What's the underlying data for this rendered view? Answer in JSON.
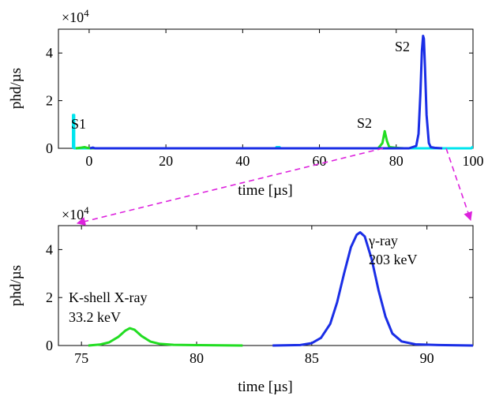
{
  "chart_data": [
    {
      "type": "line",
      "xlabel": "time [µs]",
      "ylabel": "phd/µs",
      "y_multiplier": "×10",
      "y_multiplier_exp": "4",
      "xlim": [
        -8,
        100
      ],
      "ylim": [
        0,
        5
      ],
      "xticks": [
        0,
        20,
        40,
        60,
        80,
        100
      ],
      "yticks": [
        0,
        2,
        4
      ],
      "grid": false,
      "series": [
        {
          "color": "#00e5ee",
          "points": [
            [
              -4.2,
              0
            ],
            [
              -4.2,
              1.4
            ],
            [
              -3.9,
              1.4
            ],
            [
              -3.9,
              0
            ],
            [
              48.6,
              0
            ],
            [
              48.8,
              0.05
            ],
            [
              49.6,
              0.05
            ],
            [
              49.8,
              0
            ],
            [
              99.6,
              0
            ],
            [
              99.8,
              0.05
            ],
            [
              100,
              0.05
            ]
          ]
        },
        {
          "color": "#22dd22",
          "points": [
            [
              -3.5,
              0
            ],
            [
              -2,
              0.03
            ],
            [
              -1.2,
              0.05
            ],
            [
              -0.5,
              0.02
            ],
            [
              0.5,
              0
            ],
            [
              75.3,
              0
            ],
            [
              76.4,
              0.22
            ],
            [
              77.0,
              0.72
            ],
            [
              77.6,
              0.3
            ],
            [
              78.2,
              0.05
            ],
            [
              80,
              0.02
            ],
            [
              82,
              0
            ]
          ]
        },
        {
          "color": "#1a2ee6",
          "points": [
            [
              0.2,
              0
            ],
            [
              1,
              0.03
            ],
            [
              1.5,
              0
            ],
            [
              83.3,
              0
            ],
            [
              85.2,
              0.1
            ],
            [
              85.8,
              0.6
            ],
            [
              86.3,
              2.3
            ],
            [
              86.7,
              4.1
            ],
            [
              87.0,
              4.72
            ],
            [
              87.2,
              4.6
            ],
            [
              87.5,
              3.4
            ],
            [
              87.9,
              1.4
            ],
            [
              88.5,
              0.22
            ],
            [
              89,
              0.05
            ],
            [
              90,
              0.02
            ],
            [
              92,
              0
            ]
          ]
        }
      ],
      "annotations": [
        "S1",
        "S2",
        "S2"
      ]
    },
    {
      "type": "line",
      "xlabel": "time [µs]",
      "ylabel": "phd/µs",
      "y_multiplier": "×10",
      "y_multiplier_exp": "4",
      "xlim": [
        74,
        92
      ],
      "ylim": [
        0,
        5
      ],
      "xticks": [
        75,
        80,
        85,
        90
      ],
      "yticks": [
        0,
        2,
        4
      ],
      "grid": false,
      "series": [
        {
          "color": "#22dd22",
          "points": [
            [
              75.3,
              0
            ],
            [
              75.8,
              0.04
            ],
            [
              76.2,
              0.13
            ],
            [
              76.6,
              0.36
            ],
            [
              76.9,
              0.62
            ],
            [
              77.1,
              0.72
            ],
            [
              77.3,
              0.66
            ],
            [
              77.6,
              0.4
            ],
            [
              78.0,
              0.16
            ],
            [
              78.4,
              0.07
            ],
            [
              79.0,
              0.03
            ],
            [
              80,
              0.015
            ],
            [
              82,
              0
            ]
          ]
        },
        {
          "color": "#1a2ee6",
          "points": [
            [
              83.3,
              0
            ],
            [
              84.5,
              0.02
            ],
            [
              85.0,
              0.1
            ],
            [
              85.4,
              0.32
            ],
            [
              85.8,
              0.9
            ],
            [
              86.1,
              1.8
            ],
            [
              86.4,
              3.0
            ],
            [
              86.7,
              4.1
            ],
            [
              86.95,
              4.62
            ],
            [
              87.1,
              4.72
            ],
            [
              87.3,
              4.55
            ],
            [
              87.6,
              3.6
            ],
            [
              87.9,
              2.3
            ],
            [
              88.2,
              1.2
            ],
            [
              88.5,
              0.5
            ],
            [
              88.9,
              0.17
            ],
            [
              89.5,
              0.05
            ],
            [
              90.5,
              0.02
            ],
            [
              92,
              0
            ]
          ]
        }
      ],
      "annotations": [
        {
          "lines": [
            "K-shell X-ray",
            "33.2 keV"
          ]
        },
        {
          "lines": [
            "γ-ray",
            "203 keV"
          ]
        }
      ]
    }
  ]
}
